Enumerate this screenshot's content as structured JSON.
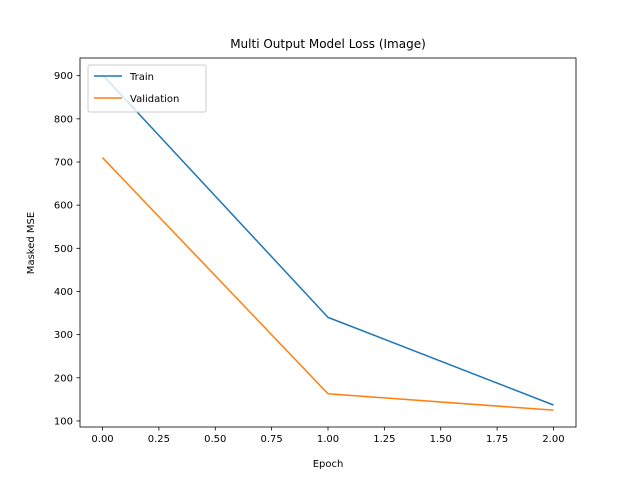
{
  "chart_data": {
    "type": "line",
    "title": "Multi Output Model Loss (Image)",
    "xlabel": "Epoch",
    "ylabel": "Masked MSE",
    "x": [
      0,
      1,
      2
    ],
    "series": [
      {
        "name": "Train",
        "color": "#1f77b4",
        "values": [
          902,
          340,
          137
        ]
      },
      {
        "name": "Validation",
        "color": "#ff7f0e",
        "values": [
          710,
          163,
          125
        ]
      }
    ],
    "xlim": [
      -0.1,
      2.1
    ],
    "ylim": [
      86,
      941
    ],
    "xticks": [
      0.0,
      0.25,
      0.5,
      0.75,
      1.0,
      1.25,
      1.5,
      1.75,
      2.0
    ],
    "xtick_labels": [
      "0.00",
      "0.25",
      "0.50",
      "0.75",
      "1.00",
      "1.25",
      "1.50",
      "1.75",
      "2.00"
    ],
    "yticks": [
      100,
      200,
      300,
      400,
      500,
      600,
      700,
      800,
      900
    ],
    "ytick_labels": [
      "100",
      "200",
      "300",
      "400",
      "500",
      "600",
      "700",
      "800",
      "900"
    ],
    "grid": false,
    "legend_position": "upper left"
  }
}
